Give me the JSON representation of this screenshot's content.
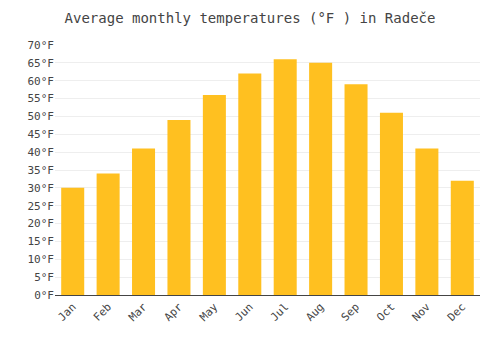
{
  "chart_data": {
    "type": "bar",
    "title": "Average monthly temperatures (°F ) in Radeče",
    "categories": [
      "Jan",
      "Feb",
      "Mar",
      "Apr",
      "May",
      "Jun",
      "Jul",
      "Aug",
      "Sep",
      "Oct",
      "Nov",
      "Dec"
    ],
    "values": [
      30,
      34,
      41,
      49,
      56,
      62,
      66,
      65,
      59,
      51,
      41,
      32
    ],
    "color": "#FFC020",
    "ylim": [
      0,
      70
    ],
    "yticks": [
      {
        "value": 0,
        "label": "0°F"
      },
      {
        "value": 5,
        "label": "5°F"
      },
      {
        "value": 10,
        "label": "10°F"
      },
      {
        "value": 15,
        "label": "15°F"
      },
      {
        "value": 20,
        "label": "20°F"
      },
      {
        "value": 25,
        "label": "25°F"
      },
      {
        "value": 30,
        "label": "30°F"
      },
      {
        "value": 35,
        "label": "35°F"
      },
      {
        "value": 40,
        "label": "40°F"
      },
      {
        "value": 45,
        "label": "45°F"
      },
      {
        "value": 50,
        "label": "50°F"
      },
      {
        "value": 55,
        "label": "55°F"
      },
      {
        "value": 60,
        "label": "60°F"
      },
      {
        "value": 65,
        "label": "65°F"
      },
      {
        "value": 70,
        "label": "70°F"
      }
    ],
    "grid": true
  }
}
